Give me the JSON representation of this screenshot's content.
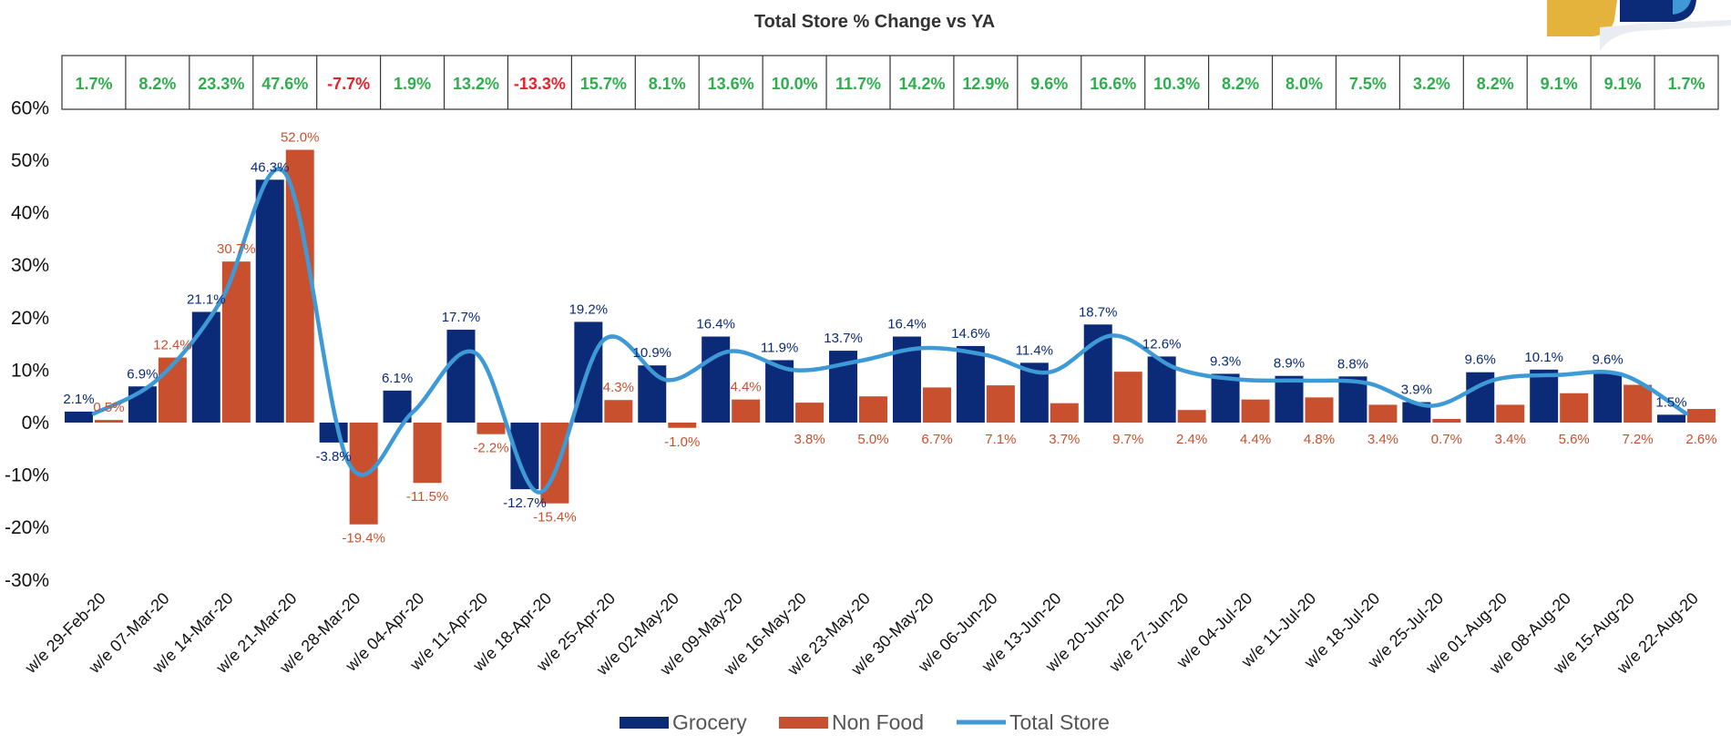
{
  "chart_data": {
    "type": "bar",
    "title": "Total Store % Change vs YA",
    "categories": [
      "w/e 29-Feb-20",
      "w/e 07-Mar-20",
      "w/e 14-Mar-20",
      "w/e 21-Mar-20",
      "w/e 28-Mar-20",
      "w/e 04-Apr-20",
      "w/e 11-Apr-20",
      "w/e 18-Apr-20",
      "w/e 25-Apr-20",
      "w/e 02-May-20",
      "w/e 09-May-20",
      "w/e 16-May-20",
      "w/e 23-May-20",
      "w/e 30-May-20",
      "w/e 06-Jun-20",
      "w/e 13-Jun-20",
      "w/e 20-Jun-20",
      "w/e 27-Jun-20",
      "w/e 04-Jul-20",
      "w/e 11-Jul-20",
      "w/e 18-Jul-20",
      "w/e 25-Jul-20",
      "w/e 01-Aug-20",
      "w/e 08-Aug-20",
      "w/e 15-Aug-20",
      "w/e 22-Aug-20"
    ],
    "series": [
      {
        "name": "Grocery",
        "type": "bar",
        "color": "#0b2a78",
        "values": [
          2.1,
          6.9,
          21.1,
          46.3,
          -3.8,
          6.1,
          17.7,
          -12.7,
          19.2,
          10.9,
          16.4,
          11.9,
          13.7,
          16.4,
          14.6,
          11.4,
          18.7,
          12.6,
          9.3,
          8.9,
          8.8,
          3.9,
          9.6,
          10.1,
          9.6,
          1.5
        ]
      },
      {
        "name": "Non Food",
        "type": "bar",
        "color": "#c9502f",
        "values": [
          0.5,
          12.4,
          30.7,
          52.0,
          -19.4,
          -11.5,
          -2.2,
          -15.4,
          4.3,
          -1.0,
          4.4,
          3.8,
          5.0,
          6.7,
          7.1,
          3.7,
          9.7,
          2.4,
          4.4,
          4.8,
          3.4,
          0.7,
          3.4,
          5.6,
          7.2,
          2.6
        ]
      },
      {
        "name": "Total Store",
        "type": "line",
        "color": "#3d9ad6",
        "values": [
          1.7,
          8.2,
          23.3,
          47.6,
          -7.7,
          1.9,
          13.2,
          -13.3,
          15.7,
          8.1,
          13.6,
          10.0,
          11.7,
          14.2,
          12.9,
          9.6,
          16.6,
          10.3,
          8.2,
          8.0,
          7.5,
          3.2,
          8.2,
          9.1,
          9.1,
          1.7
        ]
      }
    ],
    "grocery_labels": [
      "2.1%",
      "6.9%",
      "21.1%",
      "46.3%",
      "-3.8%",
      "6.1%",
      "17.7%",
      "-12.7%",
      "19.2%",
      "10.9%",
      "16.4%",
      "11.9%",
      "13.7%",
      "16.4%",
      "14.6%",
      "11.4%",
      "18.7%",
      "12.6%",
      "9.3%",
      "8.9%",
      "8.8%",
      "3.9%",
      "9.6%",
      "10.1%",
      "9.6%",
      "1.5%"
    ],
    "nonfood_labels": [
      "0.5%",
      "12.4%",
      "30.7%",
      "52.0%",
      "-19.4%",
      "-11.5%",
      "-2.2%",
      "-15.4%",
      "4.3%",
      "-1.0%",
      "4.4%",
      "3.8%",
      "5.0%",
      "6.7%",
      "7.1%",
      "3.7%",
      "9.7%",
      "2.4%",
      "4.4%",
      "4.8%",
      "3.4%",
      "0.7%",
      "3.4%",
      "5.6%",
      "7.2%",
      "2.6%"
    ],
    "total_labels": [
      "1.7%",
      "8.2%",
      "23.3%",
      "47.6%",
      "-7.7%",
      "1.9%",
      "13.2%",
      "-13.3%",
      "15.7%",
      "8.1%",
      "13.6%",
      "10.0%",
      "11.7%",
      "14.2%",
      "12.9%",
      "9.6%",
      "16.6%",
      "10.3%",
      "8.2%",
      "8.0%",
      "7.5%",
      "3.2%",
      "8.2%",
      "9.1%",
      "9.1%",
      "1.7%"
    ],
    "yticks": [
      "60%",
      "50%",
      "40%",
      "30%",
      "20%",
      "10%",
      "0%",
      "-10%",
      "-20%",
      "-30%"
    ],
    "ylim": [
      -30,
      60
    ],
    "grid": false,
    "legend_position": "bottom",
    "colors": {
      "grocery": "#0b2a78",
      "nonfood": "#c9502f",
      "total": "#3d9ad6",
      "positive_text": "#2fae4e",
      "negative_text": "#e8202a",
      "grocery_label": "#0b2a78",
      "nonfood_label": "#c9502f",
      "logo_gold": "#e4b33c",
      "logo_navy": "#0b2a78",
      "logo_blue": "#3d9ad6"
    }
  }
}
